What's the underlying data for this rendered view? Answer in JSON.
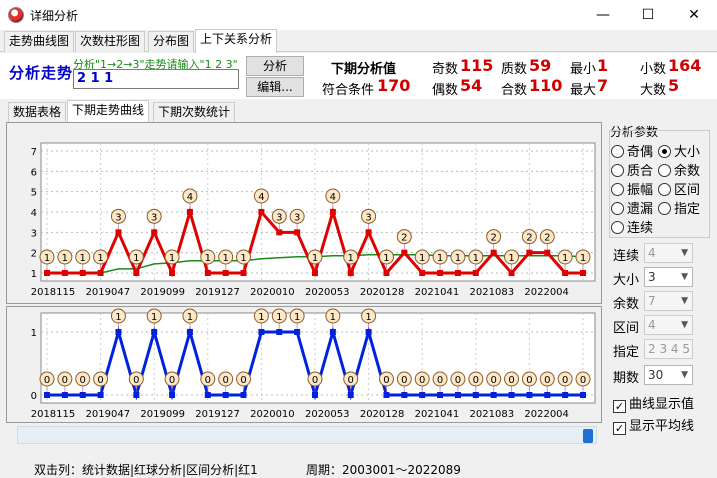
{
  "window": {
    "title": "详细分析",
    "min": "—",
    "max": "☐",
    "close": "✕"
  },
  "tabs1": [
    "走势曲线图",
    "次数柱形图",
    "分布图",
    "上下关系分析"
  ],
  "analysis": {
    "label": "分析走势",
    "hint": "分析\"1→2→3\"走势请输入\"1 2 3\"",
    "input": "2 1 1",
    "btn_analyze": "分析",
    "btn_edit": "编辑..."
  },
  "next": {
    "title": "下期分析值",
    "cond_label": "符合条件",
    "cond_value": "170"
  },
  "stats": [
    {
      "label": "奇数",
      "value": "115"
    },
    {
      "label": "质数",
      "value": "59"
    },
    {
      "label": "最小",
      "value": "1"
    },
    {
      "label": "小数",
      "value": "164"
    },
    {
      "label": "偶数",
      "value": "54"
    },
    {
      "label": "合数",
      "value": "110"
    },
    {
      "label": "最大",
      "value": "7"
    },
    {
      "label": "大数",
      "value": "5"
    }
  ],
  "tabs2": [
    "数据表格",
    "下期走势曲线",
    "下期次数统计"
  ],
  "side": {
    "title": "分析参数",
    "radios": [
      "奇偶",
      "大小",
      "质合",
      "余数",
      "振幅",
      "区间",
      "遗漏",
      "指定",
      "连续"
    ],
    "selected": "大小",
    "fields": [
      {
        "label": "连续",
        "value": "4",
        "disabled": true
      },
      {
        "label": "大小",
        "value": "3",
        "disabled": false
      },
      {
        "label": "余数",
        "value": "7",
        "disabled": true
      },
      {
        "label": "区间",
        "value": "4",
        "disabled": true
      },
      {
        "label": "指定",
        "value": "2 3 4 5",
        "disabled": true
      },
      {
        "label": "期数",
        "value": "30",
        "disabled": false
      }
    ],
    "checks": [
      {
        "label": "曲线显示值",
        "checked": true
      },
      {
        "label": "显示平均线",
        "checked": true
      }
    ]
  },
  "status": {
    "left": "双击列：统计数据|红球分析|区间分析|红1",
    "right": "周期：2003001～2022089"
  },
  "chart_data": [
    {
      "type": "line",
      "ylim": [
        1,
        7
      ],
      "yticks": [
        "1",
        "2",
        "3",
        "4",
        "5",
        "6",
        "7"
      ],
      "xticks": [
        "2018115",
        "2019047",
        "2019099",
        "2019127",
        "2020010",
        "2020053",
        "2020128",
        "2021041",
        "2021083",
        "2022004"
      ],
      "series": [
        {
          "values": [
            1,
            1,
            1,
            1,
            3,
            1,
            3,
            1,
            4,
            1,
            1,
            1,
            4,
            3,
            3,
            1,
            4,
            1,
            3,
            1,
            2,
            1,
            1,
            1,
            1,
            2,
            1,
            2,
            2,
            1,
            1
          ]
        }
      ],
      "avg": [
        1,
        1,
        1,
        1,
        1.2,
        1.2,
        1.45,
        1.5,
        1.6,
        1.6,
        1.6,
        1.6,
        1.7,
        1.75,
        1.8,
        1.8,
        1.85,
        1.85,
        1.9,
        1.9,
        1.9,
        1.9,
        1.85,
        1.85,
        1.85,
        1.85,
        1.85,
        1.85,
        1.85,
        1.85,
        1.8
      ]
    },
    {
      "type": "line",
      "ylim": [
        0,
        1
      ],
      "yticks": [
        "0",
        "1"
      ],
      "xticks": [
        "2018115",
        "2019047",
        "2019099",
        "2019127",
        "2020010",
        "2020053",
        "2020128",
        "2021041",
        "2021083",
        "2022004"
      ],
      "series": [
        {
          "values": [
            0,
            0,
            0,
            0,
            1,
            0,
            1,
            0,
            1,
            0,
            0,
            0,
            1,
            1,
            1,
            0,
            1,
            0,
            1,
            0,
            0,
            0,
            0,
            0,
            0,
            0,
            0,
            0,
            0,
            0,
            0
          ]
        }
      ]
    }
  ]
}
